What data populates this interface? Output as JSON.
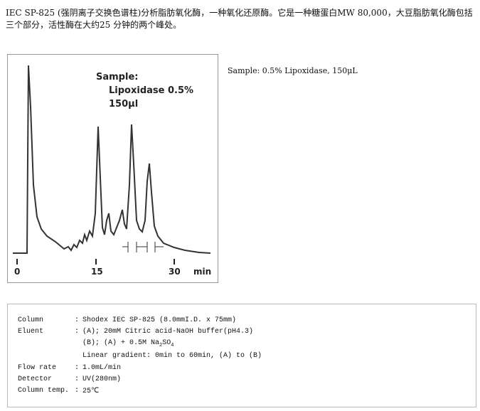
{
  "intro": "IEC SP-825 (强阴离子交换色谱柱)分析脂肪氧化酶，一种氧化还原酶。它是一种糖蛋白MW 80,000，大豆脂肪氧化酶包括三个部分，活性酶在大约25 分钟的两个峰处。",
  "figure": {
    "annotation": [
      "Sample:",
      "Lipoxidase 0.5%",
      "150μl"
    ],
    "ticks": [
      "0",
      "15",
      "30"
    ],
    "unit": "min"
  },
  "caption": "Sample: 0.5% Lipoxidase, 150μL",
  "conditions": {
    "separator": ":",
    "column": {
      "label": "Column",
      "value": "Shodex IEC SP-825 (8.0mmI.D. x 75mm)"
    },
    "eluent": {
      "label": "Eluent",
      "a": "(A); 20mM Citric acid-NaOH buffer(pH4.3)",
      "b": [
        "(B); (A) + 0.5M Na",
        "2",
        "SO",
        "4"
      ],
      "gradient": "Linear gradient: 0min to 60min, (A) to (B)"
    },
    "flow": {
      "label": "Flow rate",
      "value": "1.0mL/min"
    },
    "detector": {
      "label": "Detector",
      "value": "UV(280nm)"
    },
    "temp": {
      "label": "Column temp.",
      "value": "25℃"
    }
  }
}
